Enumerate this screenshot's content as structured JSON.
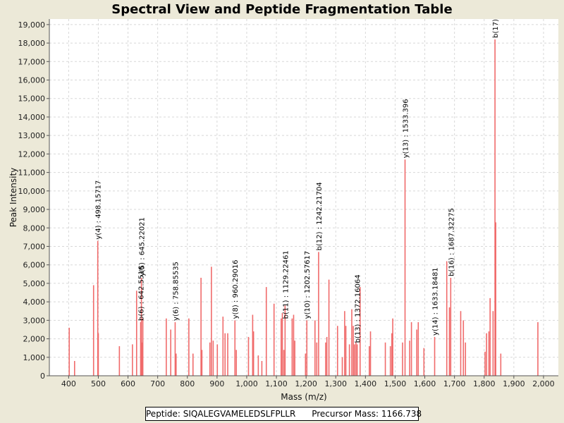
{
  "chart_data": {
    "type": "bar",
    "title": "Spectral View and Peptide Fragmentation Table",
    "xlabel": "Mass (m/z)",
    "ylabel": "Peak Intensity",
    "xlim": [
      335,
      2050
    ],
    "ylim": [
      0,
      19300
    ],
    "x_ticks": [
      "400",
      "500",
      "600",
      "700",
      "800",
      "900",
      "1,000",
      "1,100",
      "1,200",
      "1,300",
      "1,400",
      "1,500",
      "1,600",
      "1,700",
      "1,800",
      "1,900",
      "2,000"
    ],
    "y_ticks": [
      "0",
      "1,000",
      "2,000",
      "3,000",
      "4,000",
      "5,000",
      "6,000",
      "7,000",
      "8,000",
      "9,000",
      "10,000",
      "11,000",
      "12,000",
      "13,000",
      "14,000",
      "15,000",
      "16,000",
      "17,000",
      "18,000",
      "19,000"
    ],
    "grid": true,
    "bar_color": "#f06b6b",
    "peaks": [
      [
        402,
        2600
      ],
      [
        420,
        800
      ],
      [
        484,
        4900
      ],
      [
        498.16,
        7300
      ],
      [
        500,
        2300
      ],
      [
        571,
        1600
      ],
      [
        615,
        1700
      ],
      [
        629,
        4600
      ],
      [
        642.55,
        2900
      ],
      [
        645.22,
        5300
      ],
      [
        648,
        1800
      ],
      [
        650,
        3100
      ],
      [
        729,
        3100
      ],
      [
        744,
        2500
      ],
      [
        758.86,
        2900
      ],
      [
        762,
        1200
      ],
      [
        805,
        3100
      ],
      [
        819,
        1200
      ],
      [
        846,
        5300
      ],
      [
        849,
        1400
      ],
      [
        876,
        1800
      ],
      [
        881,
        5900
      ],
      [
        887,
        1900
      ],
      [
        901,
        1700
      ],
      [
        920,
        3200
      ],
      [
        927,
        2300
      ],
      [
        936,
        2300
      ],
      [
        960.29,
        3000
      ],
      [
        965,
        1400
      ],
      [
        1006,
        2100
      ],
      [
        1020,
        3300
      ],
      [
        1023,
        2400
      ],
      [
        1039,
        1100
      ],
      [
        1051,
        800
      ],
      [
        1066,
        4800
      ],
      [
        1092,
        3900
      ],
      [
        1116,
        3100
      ],
      [
        1120,
        3400
      ],
      [
        1125,
        1400
      ],
      [
        1129.22,
        3800
      ],
      [
        1153,
        3100
      ],
      [
        1158,
        3300
      ],
      [
        1162,
        1900
      ],
      [
        1198,
        1200
      ],
      [
        1202.58,
        3000
      ],
      [
        1230,
        3000
      ],
      [
        1236,
        1800
      ],
      [
        1242.22,
        6700
      ],
      [
        1266,
        1800
      ],
      [
        1270,
        2100
      ],
      [
        1277,
        5200
      ],
      [
        1306,
        2700
      ],
      [
        1322,
        1000
      ],
      [
        1330,
        3500
      ],
      [
        1334,
        2700
      ],
      [
        1346,
        1700
      ],
      [
        1354,
        3600
      ],
      [
        1359,
        2700
      ],
      [
        1363,
        1700
      ],
      [
        1368,
        1800
      ],
      [
        1372.16,
        1700
      ],
      [
        1382,
        4800
      ],
      [
        1413,
        1600
      ],
      [
        1417,
        2400
      ],
      [
        1467,
        1800
      ],
      [
        1484,
        1600
      ],
      [
        1489,
        2300
      ],
      [
        1492,
        3100
      ],
      [
        1525,
        1800
      ],
      [
        1533.4,
        11700
      ],
      [
        1549,
        1900
      ],
      [
        1555,
        2900
      ],
      [
        1573,
        2500
      ],
      [
        1578,
        2900
      ],
      [
        1597,
        1500
      ],
      [
        1633.18,
        2100
      ],
      [
        1674,
        6200
      ],
      [
        1687.32,
        5300
      ],
      [
        1683,
        3700
      ],
      [
        1721,
        3500
      ],
      [
        1730,
        3000
      ],
      [
        1737,
        1800
      ],
      [
        1803,
        1300
      ],
      [
        1808,
        2300
      ],
      [
        1816,
        2400
      ],
      [
        1820,
        4200
      ],
      [
        1830,
        3500
      ],
      [
        1836.5,
        18200
      ],
      [
        1839,
        8300
      ],
      [
        1856,
        1200
      ],
      [
        1981,
        2900
      ]
    ],
    "annotations": [
      {
        "x": 498.16,
        "y": 7300,
        "text": "y(4) : 498.15717"
      },
      {
        "x": 642.55,
        "y": 2900,
        "text": "b(6) : 642.5516"
      },
      {
        "x": 645.22,
        "y": 5300,
        "text": "y(5) : 645.22021"
      },
      {
        "x": 758.86,
        "y": 2900,
        "text": "y(6) : 758.85535"
      },
      {
        "x": 960.29,
        "y": 3000,
        "text": "y(8) : 960.29016"
      },
      {
        "x": 1129.22,
        "y": 3000,
        "text": "b(11) : 1129.22461"
      },
      {
        "x": 1202.58,
        "y": 3000,
        "text": "y(10) : 1202.57617"
      },
      {
        "x": 1242.22,
        "y": 6700,
        "text": "b(12) : 1242.21704"
      },
      {
        "x": 1372.16,
        "y": 1700,
        "text": "b(13) : 1372.16064"
      },
      {
        "x": 1533.4,
        "y": 11700,
        "text": "y(13) : 1533.396"
      },
      {
        "x": 1633.18,
        "y": 2100,
        "text": "y(14) : 1633.18481"
      },
      {
        "x": 1687.32,
        "y": 5300,
        "text": "b(16) : 1687.32275"
      },
      {
        "x": 1836.5,
        "y": 18200,
        "text": "b(17)"
      }
    ]
  },
  "footer": {
    "peptide_label": "Peptide: SIQALEGVAMELEDSLFPLLR",
    "precursor_label": "Precursor Mass: 1166.738"
  }
}
